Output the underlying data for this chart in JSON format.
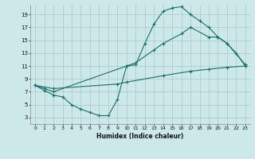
{
  "title": "",
  "xlabel": "Humidex (Indice chaleur)",
  "background_color": "#cce8e8",
  "grid_color": "#b0cccc",
  "line_color": "#1a6e6a",
  "xlim": [
    -0.5,
    23.5
  ],
  "ylim": [
    2,
    20.5
  ],
  "xticks": [
    0,
    1,
    2,
    3,
    4,
    5,
    6,
    7,
    8,
    9,
    10,
    11,
    12,
    13,
    14,
    15,
    16,
    17,
    18,
    19,
    20,
    21,
    22,
    23
  ],
  "yticks": [
    3,
    5,
    7,
    9,
    11,
    13,
    15,
    17,
    19
  ],
  "curve1_x": [
    0,
    1,
    2,
    3,
    4,
    5,
    6,
    7,
    8,
    9,
    10,
    11,
    12,
    13,
    14,
    15,
    16,
    17,
    18,
    19,
    20,
    21,
    22,
    23
  ],
  "curve1_y": [
    8.0,
    7.2,
    6.5,
    6.2,
    5.0,
    4.3,
    3.8,
    3.3,
    3.3,
    5.8,
    11.0,
    11.2,
    14.5,
    17.5,
    19.5,
    20.0,
    20.2,
    19.0,
    18.0,
    17.0,
    15.5,
    14.5,
    13.0,
    11.0
  ],
  "curve2_x": [
    0,
    1,
    2,
    10,
    11,
    13,
    14,
    16,
    17,
    19,
    20,
    21,
    23
  ],
  "curve2_y": [
    8.0,
    7.5,
    7.0,
    11.0,
    11.5,
    13.5,
    14.5,
    16.0,
    17.0,
    15.5,
    15.5,
    14.5,
    11.2
  ],
  "curve3_x": [
    0,
    2,
    9,
    10,
    14,
    17,
    19,
    21,
    23
  ],
  "curve3_y": [
    8.0,
    7.5,
    8.2,
    8.5,
    9.5,
    10.2,
    10.5,
    10.8,
    11.0
  ]
}
